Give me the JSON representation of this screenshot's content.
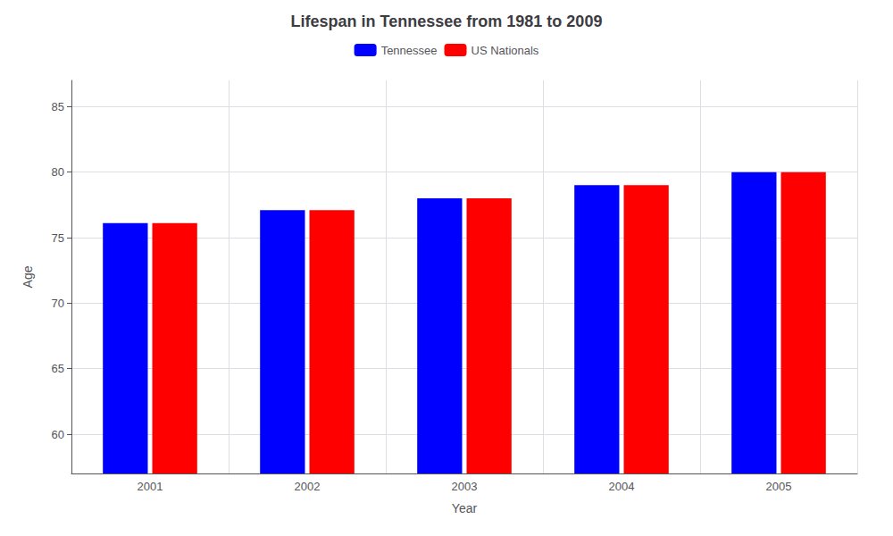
{
  "chart_data": {
    "type": "bar",
    "title": "Lifespan in Tennessee from 1981 to 2009",
    "xlabel": "Year",
    "ylabel": "Age",
    "categories": [
      "2001",
      "2002",
      "2003",
      "2004",
      "2005"
    ],
    "series": [
      {
        "name": "Tennessee",
        "color": "#0000ff",
        "values": [
          76.1,
          77.1,
          78.0,
          79.0,
          80.0
        ]
      },
      {
        "name": "US Nationals",
        "color": "#ff0000",
        "values": [
          76.1,
          77.1,
          78.0,
          79.0,
          80.0
        ]
      }
    ],
    "ylim": [
      57,
      87
    ],
    "yticks": [
      60,
      65,
      70,
      75,
      80,
      85
    ],
    "grid": true,
    "legend": "top"
  }
}
